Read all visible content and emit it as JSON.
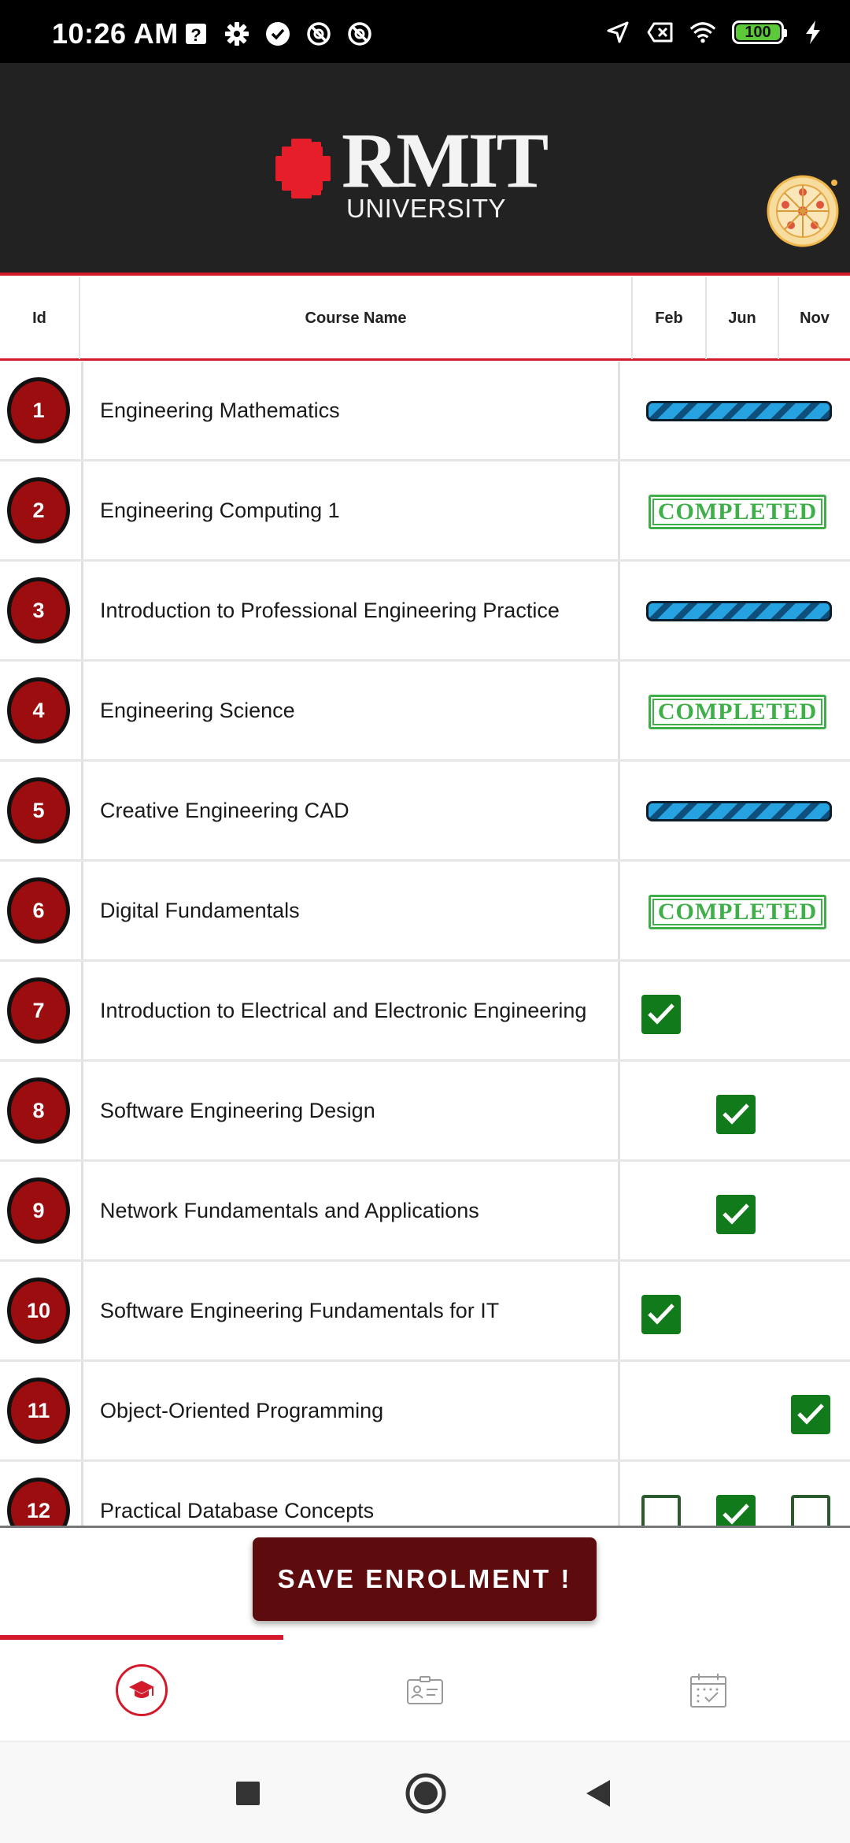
{
  "status_bar": {
    "time": "10:26 AM",
    "left_icons": [
      "help-box-icon",
      "gear-icon",
      "check-circle-icon",
      "no-sim-icon",
      "no-sim-icon"
    ],
    "right_icons": [
      "location-arrow-icon",
      "data-off-icon",
      "wifi-icon",
      "battery-icon",
      "charging-bolt-icon"
    ],
    "battery_level": "100",
    "battery_color": "#5cc93a"
  },
  "header": {
    "logo_title": "RMIT",
    "logo_subtitle": "UNIVERSITY",
    "background": "#222222",
    "accent": "#d4192a"
  },
  "table": {
    "columns": {
      "id": "Id",
      "name": "Course Name",
      "feb": "Feb",
      "jun": "Jun",
      "nov": "Nov"
    },
    "stamp_text": "COMPLETED",
    "rows": [
      {
        "id": "1",
        "name": "Engineering Mathematics",
        "status": "in-progress"
      },
      {
        "id": "2",
        "name": "Engineering Computing 1",
        "status": "completed"
      },
      {
        "id": "3",
        "name": "Introduction to Professional Engineering Practice",
        "status": "in-progress"
      },
      {
        "id": "4",
        "name": "Engineering Science",
        "status": "completed"
      },
      {
        "id": "5",
        "name": "Creative Engineering CAD",
        "status": "in-progress"
      },
      {
        "id": "6",
        "name": "Digital Fundamentals",
        "status": "completed"
      },
      {
        "id": "7",
        "name": "Introduction to Electrical and Electronic Engineering",
        "status": "enrolled",
        "feb": true
      },
      {
        "id": "8",
        "name": "Software Engineering Design",
        "status": "enrolled",
        "jun": true
      },
      {
        "id": "9",
        "name": "Network Fundamentals and Applications",
        "status": "enrolled",
        "jun": true
      },
      {
        "id": "10",
        "name": "Software Engineering Fundamentals for IT",
        "status": "enrolled",
        "feb": true
      },
      {
        "id": "11",
        "name": "Object-Oriented Programming",
        "status": "enrolled",
        "nov": true
      },
      {
        "id": "12",
        "name": "Practical Database Concepts",
        "status": "options",
        "feb": false,
        "jun": true,
        "nov": false
      }
    ]
  },
  "save_button": {
    "label": "SAVE ENROLMENT !"
  },
  "bottom_nav": {
    "items": [
      {
        "icon": "graduation-cap-icon",
        "active": true
      },
      {
        "icon": "id-card-icon",
        "active": false
      },
      {
        "icon": "calendar-check-icon",
        "active": false
      }
    ]
  },
  "system_nav": {
    "buttons": [
      "recents-square-icon",
      "home-circle-icon",
      "back-triangle-icon"
    ]
  },
  "colors": {
    "badge": "#9c0d0f",
    "check": "#117a1a",
    "stamp": "#3faf4a",
    "progress": "#27a2e0",
    "save_button": "#5e0b0d"
  }
}
